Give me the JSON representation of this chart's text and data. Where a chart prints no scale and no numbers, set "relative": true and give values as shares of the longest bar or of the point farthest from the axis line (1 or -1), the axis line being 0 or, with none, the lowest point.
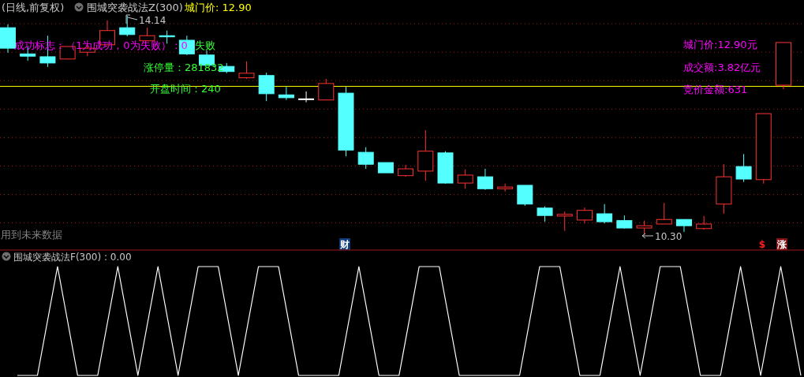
{
  "chart_data": [
    {
      "type": "candlestick",
      "title": "(日线,前复权)",
      "subtitle": "围城突袭战法Z(300)",
      "categories": [
        null,
        null,
        null,
        null,
        null,
        null,
        null,
        null,
        null,
        null,
        null,
        null,
        null,
        null,
        null,
        null,
        null,
        null,
        null,
        null,
        null,
        null,
        null,
        null,
        null,
        null,
        null,
        null,
        null,
        null,
        null,
        null,
        null,
        null,
        null,
        null,
        null,
        null,
        null,
        null
      ],
      "ohlc": [
        [
          13.93,
          13.99,
          13.49,
          13.57
        ],
        [
          13.47,
          13.59,
          13.35,
          13.43
        ],
        [
          13.42,
          13.79,
          13.24,
          13.31
        ],
        [
          13.38,
          13.6,
          13.38,
          13.6
        ],
        [
          13.5,
          13.63,
          13.43,
          13.57
        ],
        [
          13.63,
          14.06,
          13.63,
          13.88
        ],
        [
          13.93,
          14.14,
          13.78,
          13.81
        ],
        [
          13.7,
          13.93,
          13.7,
          13.79
        ],
        [
          13.79,
          13.88,
          13.65,
          13.77
        ],
        [
          13.71,
          13.79,
          13.45,
          13.47
        ],
        [
          13.45,
          13.53,
          13.27,
          13.27
        ],
        [
          13.25,
          13.31,
          13.13,
          13.16
        ],
        [
          13.05,
          13.34,
          13.03,
          13.13
        ],
        [
          13.09,
          13.14,
          12.64,
          12.77
        ],
        [
          12.75,
          12.89,
          12.66,
          12.7
        ],
        [
          12.68,
          12.81,
          12.62,
          12.68
        ],
        [
          12.66,
          13.03,
          12.66,
          12.95
        ],
        [
          12.78,
          12.89,
          11.67,
          11.78
        ],
        [
          11.74,
          11.83,
          11.45,
          11.53
        ],
        [
          11.56,
          11.56,
          11.38,
          11.38
        ],
        [
          11.33,
          11.52,
          11.31,
          11.45
        ],
        [
          11.41,
          12.13,
          11.24,
          11.76
        ],
        [
          11.73,
          11.76,
          11.19,
          11.2
        ],
        [
          11.2,
          11.44,
          11.1,
          11.34
        ],
        [
          11.31,
          11.45,
          11.08,
          11.1
        ],
        [
          11.1,
          11.19,
          11.05,
          11.13
        ],
        [
          11.16,
          11.16,
          10.8,
          10.83
        ],
        [
          10.76,
          10.79,
          10.52,
          10.63
        ],
        [
          10.62,
          10.7,
          10.36,
          10.65
        ],
        [
          10.55,
          10.77,
          10.49,
          10.72
        ],
        [
          10.66,
          10.83,
          10.49,
          10.52
        ],
        [
          10.54,
          10.63,
          10.4,
          10.41
        ],
        [
          10.41,
          10.54,
          10.3,
          10.45
        ],
        [
          10.48,
          10.85,
          10.48,
          10.56
        ],
        [
          10.56,
          10.56,
          10.34,
          10.45
        ],
        [
          10.4,
          10.62,
          10.38,
          10.48
        ],
        [
          10.83,
          11.53,
          10.66,
          11.31
        ],
        [
          11.49,
          11.71,
          11.22,
          11.27
        ],
        [
          11.26,
          12.42,
          11.19,
          12.42
        ],
        [
          12.92,
          13.67,
          12.85,
          13.67
        ]
      ],
      "colors": [
        "#54ffff",
        "#54ffff",
        "#54ffff",
        "#ff3232",
        "#ff3232",
        "#ff3232",
        "#54ffff",
        "#ff3232",
        "#54ffff",
        "#54ffff",
        "#54ffff",
        "#54ffff",
        "#ff3232",
        "#54ffff",
        "#54ffff",
        "#ffffff",
        "#ff3232",
        "#54ffff",
        "#54ffff",
        "#54ffff",
        "#ff3232",
        "#ff3232",
        "#54ffff",
        "#ff3232",
        "#54ffff",
        "#ff3232",
        "#54ffff",
        "#54ffff",
        "#ff3232",
        "#ff3232",
        "#54ffff",
        "#54ffff",
        "#ff3232",
        "#ff3232",
        "#54ffff",
        "#ff3232",
        "#ff3232",
        "#54ffff",
        "#ff3232",
        "#ff3232"
      ],
      "yticks": [
        {
          "value": 14.0,
          "label": null
        },
        {
          "value": 13.5,
          "label": null
        },
        {
          "value": 13.0,
          "label": null
        },
        {
          "value": 12.5,
          "label": null
        },
        {
          "value": 12.0,
          "label": null
        },
        {
          "value": 11.5,
          "label": null
        },
        {
          "value": 11.0,
          "label": null
        },
        {
          "value": 10.5,
          "label": null
        }
      ],
      "grid": "y",
      "ref_lines": [
        {
          "axis": "y",
          "value": 12.9,
          "label": "城门价: 12.90",
          "color": "#ffff00"
        }
      ],
      "annotations": [
        "成功标志：（1为成功，0为失败）：0",
        "失败",
        "涨停量：281832",
        "开盘时间：240",
        "城门价:12.90元",
        "成交额:3.82亿元",
        "竞价金额:631",
        "用到未来数据",
        "财",
        "$",
        "涨",
        "14.14",
        "10.30"
      ]
    },
    {
      "type": "line",
      "title": "围城突袭战法F(300) : 0.00",
      "relative": true,
      "categories": [
        null,
        null,
        null,
        null,
        null,
        null,
        null,
        null,
        null,
        null,
        null,
        null,
        null,
        null,
        null,
        null,
        null,
        null,
        null,
        null,
        null,
        null,
        null,
        null,
        null,
        null,
        null,
        null,
        null,
        null,
        null,
        null,
        null,
        null,
        null,
        null,
        null,
        null,
        null,
        null
      ],
      "series": [
        {
          "color": "#ffffff",
          "values": [
            0,
            0,
            1,
            0,
            0,
            1,
            0,
            1,
            0,
            1,
            1,
            0,
            1,
            1,
            0,
            0,
            0,
            1,
            0,
            0,
            1,
            1,
            0,
            0,
            0,
            0,
            1,
            1,
            0,
            0,
            1,
            0,
            1,
            1,
            0,
            0,
            1,
            0,
            1,
            0
          ]
        }
      ]
    }
  ]
}
